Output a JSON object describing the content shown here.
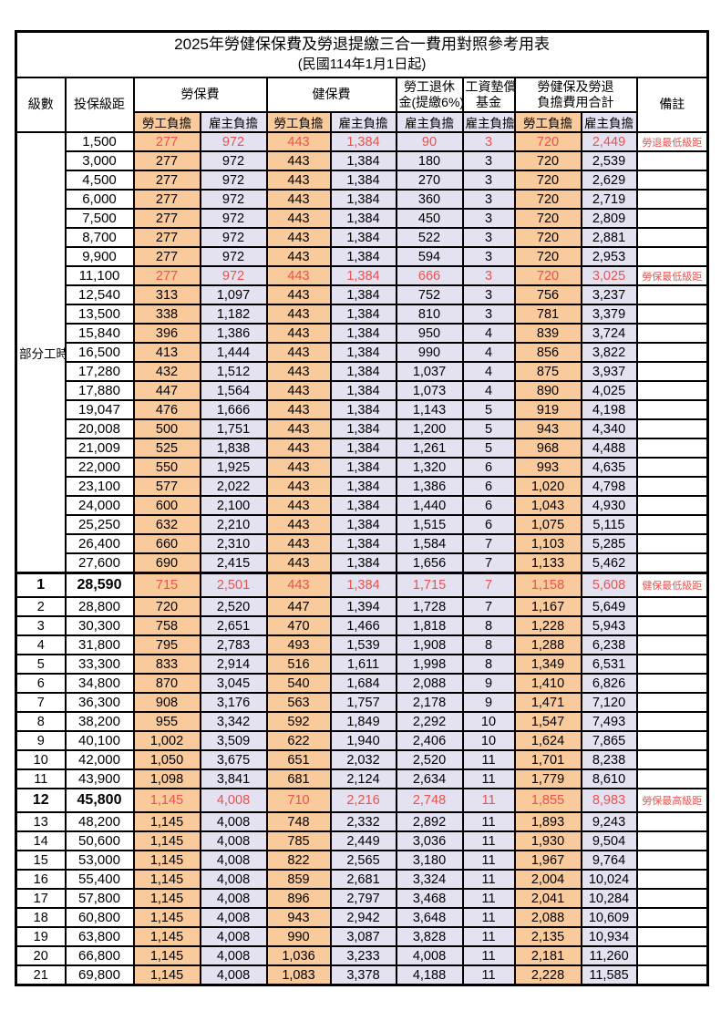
{
  "title": "2025年勞健保保費及勞退提繳三合一費用對照參考用表",
  "subtitle": "(民國114年1月1日起)",
  "colors": {
    "employee_bg": "#f9ca9c",
    "employer_bg": "#e4e1f0",
    "highlight_red": "#e8534e",
    "border": "#000000"
  },
  "header": {
    "grade": "級數",
    "bracket": "投保級距",
    "labor_insurance": "勞保費",
    "health_insurance": "健保費",
    "pension_line1": "勞工退休",
    "pension_line2": "金(提繳6%)",
    "wage_fund_line1": "工資墊償",
    "wage_fund_line2": "基金",
    "total_line1": "勞健保及勞退",
    "total_line2": "負擔費用合計",
    "remarks": "備註",
    "employee_label": "勞工負擔",
    "employer_label": "雇主負擔"
  },
  "part_time": {
    "label": "部分工時",
    "rowspan": 23
  },
  "column_pattern": [
    "employee",
    "employer",
    "employee",
    "employer",
    "employer",
    "employer",
    "employee",
    "employer"
  ],
  "rows": [
    {
      "grade": "",
      "bracket": "1,500",
      "values": [
        "277",
        "972",
        "443",
        "1,384",
        "90",
        "3",
        "720",
        "2,449"
      ],
      "red": true,
      "bold": false,
      "thick_top": false,
      "remark": "勞退最低級距"
    },
    {
      "grade": "",
      "bracket": "3,000",
      "values": [
        "277",
        "972",
        "443",
        "1,384",
        "180",
        "3",
        "720",
        "2,539"
      ],
      "red": false,
      "bold": false,
      "thick_top": false,
      "remark": ""
    },
    {
      "grade": "",
      "bracket": "4,500",
      "values": [
        "277",
        "972",
        "443",
        "1,384",
        "270",
        "3",
        "720",
        "2,629"
      ],
      "red": false,
      "bold": false,
      "thick_top": false,
      "remark": ""
    },
    {
      "grade": "",
      "bracket": "6,000",
      "values": [
        "277",
        "972",
        "443",
        "1,384",
        "360",
        "3",
        "720",
        "2,719"
      ],
      "red": false,
      "bold": false,
      "thick_top": false,
      "remark": ""
    },
    {
      "grade": "",
      "bracket": "7,500",
      "values": [
        "277",
        "972",
        "443",
        "1,384",
        "450",
        "3",
        "720",
        "2,809"
      ],
      "red": false,
      "bold": false,
      "thick_top": false,
      "remark": ""
    },
    {
      "grade": "",
      "bracket": "8,700",
      "values": [
        "277",
        "972",
        "443",
        "1,384",
        "522",
        "3",
        "720",
        "2,881"
      ],
      "red": false,
      "bold": false,
      "thick_top": false,
      "remark": ""
    },
    {
      "grade": "",
      "bracket": "9,900",
      "values": [
        "277",
        "972",
        "443",
        "1,384",
        "594",
        "3",
        "720",
        "2,953"
      ],
      "red": false,
      "bold": false,
      "thick_top": false,
      "remark": ""
    },
    {
      "grade": "",
      "bracket": "11,100",
      "values": [
        "277",
        "972",
        "443",
        "1,384",
        "666",
        "3",
        "720",
        "3,025"
      ],
      "red": true,
      "bold": false,
      "thick_top": false,
      "remark": "勞保最低級距"
    },
    {
      "grade": "",
      "bracket": "12,540",
      "values": [
        "313",
        "1,097",
        "443",
        "1,384",
        "752",
        "3",
        "756",
        "3,237"
      ],
      "red": false,
      "bold": false,
      "thick_top": false,
      "remark": ""
    },
    {
      "grade": "",
      "bracket": "13,500",
      "values": [
        "338",
        "1,182",
        "443",
        "1,384",
        "810",
        "3",
        "781",
        "3,379"
      ],
      "red": false,
      "bold": false,
      "thick_top": false,
      "remark": ""
    },
    {
      "grade": "",
      "bracket": "15,840",
      "values": [
        "396",
        "1,386",
        "443",
        "1,384",
        "950",
        "4",
        "839",
        "3,724"
      ],
      "red": false,
      "bold": false,
      "thick_top": false,
      "remark": ""
    },
    {
      "grade": "",
      "bracket": "16,500",
      "values": [
        "413",
        "1,444",
        "443",
        "1,384",
        "990",
        "4",
        "856",
        "3,822"
      ],
      "red": false,
      "bold": false,
      "thick_top": false,
      "remark": ""
    },
    {
      "grade": "",
      "bracket": "17,280",
      "values": [
        "432",
        "1,512",
        "443",
        "1,384",
        "1,037",
        "4",
        "875",
        "3,937"
      ],
      "red": false,
      "bold": false,
      "thick_top": false,
      "remark": ""
    },
    {
      "grade": "",
      "bracket": "17,880",
      "values": [
        "447",
        "1,564",
        "443",
        "1,384",
        "1,073",
        "4",
        "890",
        "4,025"
      ],
      "red": false,
      "bold": false,
      "thick_top": false,
      "remark": ""
    },
    {
      "grade": "",
      "bracket": "19,047",
      "values": [
        "476",
        "1,666",
        "443",
        "1,384",
        "1,143",
        "5",
        "919",
        "4,198"
      ],
      "red": false,
      "bold": false,
      "thick_top": false,
      "remark": ""
    },
    {
      "grade": "",
      "bracket": "20,008",
      "values": [
        "500",
        "1,751",
        "443",
        "1,384",
        "1,200",
        "5",
        "943",
        "4,340"
      ],
      "red": false,
      "bold": false,
      "thick_top": false,
      "remark": ""
    },
    {
      "grade": "",
      "bracket": "21,009",
      "values": [
        "525",
        "1,838",
        "443",
        "1,384",
        "1,261",
        "5",
        "968",
        "4,488"
      ],
      "red": false,
      "bold": false,
      "thick_top": false,
      "remark": ""
    },
    {
      "grade": "",
      "bracket": "22,000",
      "values": [
        "550",
        "1,925",
        "443",
        "1,384",
        "1,320",
        "6",
        "993",
        "4,635"
      ],
      "red": false,
      "bold": false,
      "thick_top": false,
      "remark": ""
    },
    {
      "grade": "",
      "bracket": "23,100",
      "values": [
        "577",
        "2,022",
        "443",
        "1,384",
        "1,386",
        "6",
        "1,020",
        "4,798"
      ],
      "red": false,
      "bold": false,
      "thick_top": false,
      "remark": ""
    },
    {
      "grade": "",
      "bracket": "24,000",
      "values": [
        "600",
        "2,100",
        "443",
        "1,384",
        "1,440",
        "6",
        "1,043",
        "4,930"
      ],
      "red": false,
      "bold": false,
      "thick_top": false,
      "remark": ""
    },
    {
      "grade": "",
      "bracket": "25,250",
      "values": [
        "632",
        "2,210",
        "443",
        "1,384",
        "1,515",
        "6",
        "1,075",
        "5,115"
      ],
      "red": false,
      "bold": false,
      "thick_top": false,
      "remark": ""
    },
    {
      "grade": "",
      "bracket": "26,400",
      "values": [
        "660",
        "2,310",
        "443",
        "1,384",
        "1,584",
        "7",
        "1,103",
        "5,285"
      ],
      "red": false,
      "bold": false,
      "thick_top": false,
      "remark": ""
    },
    {
      "grade": "",
      "bracket": "27,600",
      "values": [
        "690",
        "2,415",
        "443",
        "1,384",
        "1,656",
        "7",
        "1,133",
        "5,462"
      ],
      "red": false,
      "bold": false,
      "thick_top": false,
      "remark": ""
    },
    {
      "grade": "1",
      "bracket": "28,590",
      "values": [
        "715",
        "2,501",
        "443",
        "1,384",
        "1,715",
        "7",
        "1,158",
        "5,608"
      ],
      "red": true,
      "bold": true,
      "thick_top": true,
      "remark": "健保最低級距"
    },
    {
      "grade": "2",
      "bracket": "28,800",
      "values": [
        "720",
        "2,520",
        "447",
        "1,394",
        "1,728",
        "7",
        "1,167",
        "5,649"
      ],
      "red": false,
      "bold": false,
      "thick_top": false,
      "remark": ""
    },
    {
      "grade": "3",
      "bracket": "30,300",
      "values": [
        "758",
        "2,651",
        "470",
        "1,466",
        "1,818",
        "8",
        "1,228",
        "5,943"
      ],
      "red": false,
      "bold": false,
      "thick_top": false,
      "remark": ""
    },
    {
      "grade": "4",
      "bracket": "31,800",
      "values": [
        "795",
        "2,783",
        "493",
        "1,539",
        "1,908",
        "8",
        "1,288",
        "6,238"
      ],
      "red": false,
      "bold": false,
      "thick_top": false,
      "remark": ""
    },
    {
      "grade": "5",
      "bracket": "33,300",
      "values": [
        "833",
        "2,914",
        "516",
        "1,611",
        "1,998",
        "8",
        "1,349",
        "6,531"
      ],
      "red": false,
      "bold": false,
      "thick_top": false,
      "remark": ""
    },
    {
      "grade": "6",
      "bracket": "34,800",
      "values": [
        "870",
        "3,045",
        "540",
        "1,684",
        "2,088",
        "9",
        "1,410",
        "6,826"
      ],
      "red": false,
      "bold": false,
      "thick_top": false,
      "remark": ""
    },
    {
      "grade": "7",
      "bracket": "36,300",
      "values": [
        "908",
        "3,176",
        "563",
        "1,757",
        "2,178",
        "9",
        "1,471",
        "7,120"
      ],
      "red": false,
      "bold": false,
      "thick_top": false,
      "remark": ""
    },
    {
      "grade": "8",
      "bracket": "38,200",
      "values": [
        "955",
        "3,342",
        "592",
        "1,849",
        "2,292",
        "10",
        "1,547",
        "7,493"
      ],
      "red": false,
      "bold": false,
      "thick_top": false,
      "remark": ""
    },
    {
      "grade": "9",
      "bracket": "40,100",
      "values": [
        "1,002",
        "3,509",
        "622",
        "1,940",
        "2,406",
        "10",
        "1,624",
        "7,865"
      ],
      "red": false,
      "bold": false,
      "thick_top": false,
      "remark": ""
    },
    {
      "grade": "10",
      "bracket": "42,000",
      "values": [
        "1,050",
        "3,675",
        "651",
        "2,032",
        "2,520",
        "11",
        "1,701",
        "8,238"
      ],
      "red": false,
      "bold": false,
      "thick_top": false,
      "remark": ""
    },
    {
      "grade": "11",
      "bracket": "43,900",
      "values": [
        "1,098",
        "3,841",
        "681",
        "2,124",
        "2,634",
        "11",
        "1,779",
        "8,610"
      ],
      "red": false,
      "bold": false,
      "thick_top": false,
      "remark": ""
    },
    {
      "grade": "12",
      "bracket": "45,800",
      "values": [
        "1,145",
        "4,008",
        "710",
        "2,216",
        "2,748",
        "11",
        "1,855",
        "8,983"
      ],
      "red": true,
      "bold": true,
      "thick_top": false,
      "remark": "勞保最高級距"
    },
    {
      "grade": "13",
      "bracket": "48,200",
      "values": [
        "1,145",
        "4,008",
        "748",
        "2,332",
        "2,892",
        "11",
        "1,893",
        "9,243"
      ],
      "red": false,
      "bold": false,
      "thick_top": false,
      "remark": ""
    },
    {
      "grade": "14",
      "bracket": "50,600",
      "values": [
        "1,145",
        "4,008",
        "785",
        "2,449",
        "3,036",
        "11",
        "1,930",
        "9,504"
      ],
      "red": false,
      "bold": false,
      "thick_top": false,
      "remark": ""
    },
    {
      "grade": "15",
      "bracket": "53,000",
      "values": [
        "1,145",
        "4,008",
        "822",
        "2,565",
        "3,180",
        "11",
        "1,967",
        "9,764"
      ],
      "red": false,
      "bold": false,
      "thick_top": false,
      "remark": ""
    },
    {
      "grade": "16",
      "bracket": "55,400",
      "values": [
        "1,145",
        "4,008",
        "859",
        "2,681",
        "3,324",
        "11",
        "2,004",
        "10,024"
      ],
      "red": false,
      "bold": false,
      "thick_top": false,
      "remark": ""
    },
    {
      "grade": "17",
      "bracket": "57,800",
      "values": [
        "1,145",
        "4,008",
        "896",
        "2,797",
        "3,468",
        "11",
        "2,041",
        "10,284"
      ],
      "red": false,
      "bold": false,
      "thick_top": false,
      "remark": ""
    },
    {
      "grade": "18",
      "bracket": "60,800",
      "values": [
        "1,145",
        "4,008",
        "943",
        "2,942",
        "3,648",
        "11",
        "2,088",
        "10,609"
      ],
      "red": false,
      "bold": false,
      "thick_top": false,
      "remark": ""
    },
    {
      "grade": "19",
      "bracket": "63,800",
      "values": [
        "1,145",
        "4,008",
        "990",
        "3,087",
        "3,828",
        "11",
        "2,135",
        "10,934"
      ],
      "red": false,
      "bold": false,
      "thick_top": false,
      "remark": ""
    },
    {
      "grade": "20",
      "bracket": "66,800",
      "values": [
        "1,145",
        "4,008",
        "1,036",
        "3,233",
        "4,008",
        "11",
        "2,181",
        "11,260"
      ],
      "red": false,
      "bold": false,
      "thick_top": false,
      "remark": ""
    },
    {
      "grade": "21",
      "bracket": "69,800",
      "values": [
        "1,145",
        "4,008",
        "1,083",
        "3,378",
        "4,188",
        "11",
        "2,228",
        "11,585"
      ],
      "red": false,
      "bold": false,
      "thick_top": false,
      "remark": ""
    }
  ]
}
